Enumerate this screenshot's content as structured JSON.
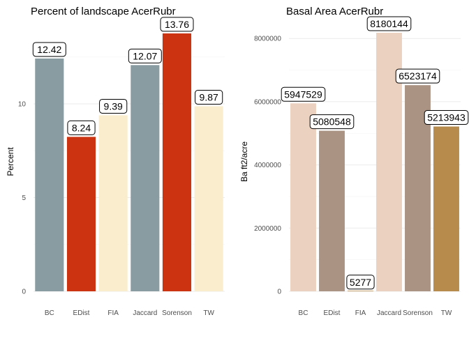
{
  "chart_data": [
    {
      "type": "bar",
      "title": "Percent of landscape  AcerRubr",
      "xlabel": "",
      "ylabel": "Percent",
      "categories": [
        "BC",
        "EDist",
        "FIA",
        "Jaccard",
        "Sorenson",
        "TW"
      ],
      "values": [
        12.42,
        8.24,
        9.39,
        12.07,
        13.76,
        9.87
      ],
      "value_labels": [
        "12.42",
        "8.24",
        "9.39",
        "12.07",
        "13.76",
        "9.87"
      ],
      "colors": [
        "#899CA2",
        "#CB3311",
        "#F9EDCD",
        "#899CA2",
        "#CB3311",
        "#F9EDCD"
      ],
      "yticks": [
        0,
        5,
        10
      ],
      "ytick_labels": [
        "0",
        "5",
        "10"
      ],
      "ylim": [
        0,
        14.5
      ],
      "grid": true,
      "legend": "none"
    },
    {
      "type": "bar",
      "title": "Basal Area  AcerRubr",
      "xlabel": "",
      "ylabel": "Ba ft2/acre",
      "categories": [
        "BC",
        "EDist",
        "FIA",
        "Jaccard",
        "Sorenson",
        "TW"
      ],
      "values": [
        5947529,
        5080548,
        5277,
        8180144,
        6523174,
        5213943
      ],
      "value_labels": [
        "5947529",
        "5080548",
        "5277",
        "8180144",
        "6523174",
        "5213943"
      ],
      "colors": [
        "#EBD1BF",
        "#AA9383",
        "#B78B4B",
        "#EBD1BF",
        "#AA9383",
        "#B78B4B"
      ],
      "yticks": [
        0,
        2000000,
        4000000,
        6000000,
        8000000
      ],
      "ytick_labels": [
        "0",
        "2000000",
        "4000000",
        "6000000",
        "8000000"
      ],
      "ylim": [
        0,
        8600000
      ],
      "grid": true,
      "legend": "none"
    }
  ]
}
